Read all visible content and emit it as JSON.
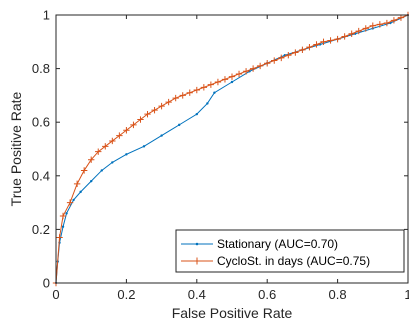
{
  "chart_data": {
    "type": "line",
    "title": "",
    "xlabel": "False Positive Rate",
    "ylabel": "True Positive Rate",
    "xlim": [
      0,
      1
    ],
    "ylim": [
      0,
      1
    ],
    "xticks": [
      "0",
      "0.2",
      "0.4",
      "0.6",
      "0.8",
      "1"
    ],
    "yticks": [
      "0",
      "0.2",
      "0.4",
      "0.6",
      "0.8",
      "1"
    ],
    "grid": false,
    "legend_position": "bottom-right",
    "series": [
      {
        "name": "Stationary (AUC=0.70)",
        "color": "#0072BD",
        "marker": "dot",
        "x": [
          0,
          0.005,
          0.01,
          0.02,
          0.03,
          0.05,
          0.07,
          0.1,
          0.13,
          0.16,
          0.2,
          0.25,
          0.3,
          0.35,
          0.4,
          0.43,
          0.45,
          0.5,
          0.55,
          0.6,
          0.65,
          0.7,
          0.75,
          0.8,
          0.85,
          0.9,
          0.95,
          1.0
        ],
        "y": [
          0,
          0.08,
          0.15,
          0.21,
          0.26,
          0.31,
          0.34,
          0.38,
          0.42,
          0.45,
          0.48,
          0.51,
          0.55,
          0.59,
          0.63,
          0.67,
          0.71,
          0.75,
          0.79,
          0.82,
          0.85,
          0.87,
          0.89,
          0.91,
          0.93,
          0.95,
          0.97,
          1.0
        ]
      },
      {
        "name": "CycloSt. in days (AUC=0.75)",
        "color": "#D95319",
        "marker": "plus",
        "x": [
          0,
          0.01,
          0.02,
          0.04,
          0.06,
          0.08,
          0.1,
          0.12,
          0.14,
          0.16,
          0.18,
          0.2,
          0.22,
          0.24,
          0.26,
          0.28,
          0.3,
          0.32,
          0.34,
          0.36,
          0.38,
          0.4,
          0.42,
          0.44,
          0.46,
          0.48,
          0.5,
          0.52,
          0.54,
          0.56,
          0.58,
          0.6,
          0.62,
          0.64,
          0.66,
          0.68,
          0.7,
          0.72,
          0.74,
          0.76,
          0.78,
          0.8,
          0.82,
          0.84,
          0.86,
          0.88,
          0.9,
          0.92,
          0.94,
          0.96,
          0.98,
          1.0
        ],
        "y": [
          0,
          0.17,
          0.25,
          0.3,
          0.37,
          0.42,
          0.46,
          0.49,
          0.51,
          0.53,
          0.55,
          0.57,
          0.59,
          0.61,
          0.63,
          0.645,
          0.66,
          0.675,
          0.69,
          0.7,
          0.71,
          0.72,
          0.73,
          0.74,
          0.75,
          0.76,
          0.77,
          0.78,
          0.79,
          0.8,
          0.81,
          0.82,
          0.83,
          0.84,
          0.85,
          0.86,
          0.87,
          0.88,
          0.89,
          0.9,
          0.905,
          0.91,
          0.92,
          0.93,
          0.94,
          0.95,
          0.96,
          0.965,
          0.97,
          0.98,
          0.99,
          1.0
        ]
      }
    ]
  }
}
